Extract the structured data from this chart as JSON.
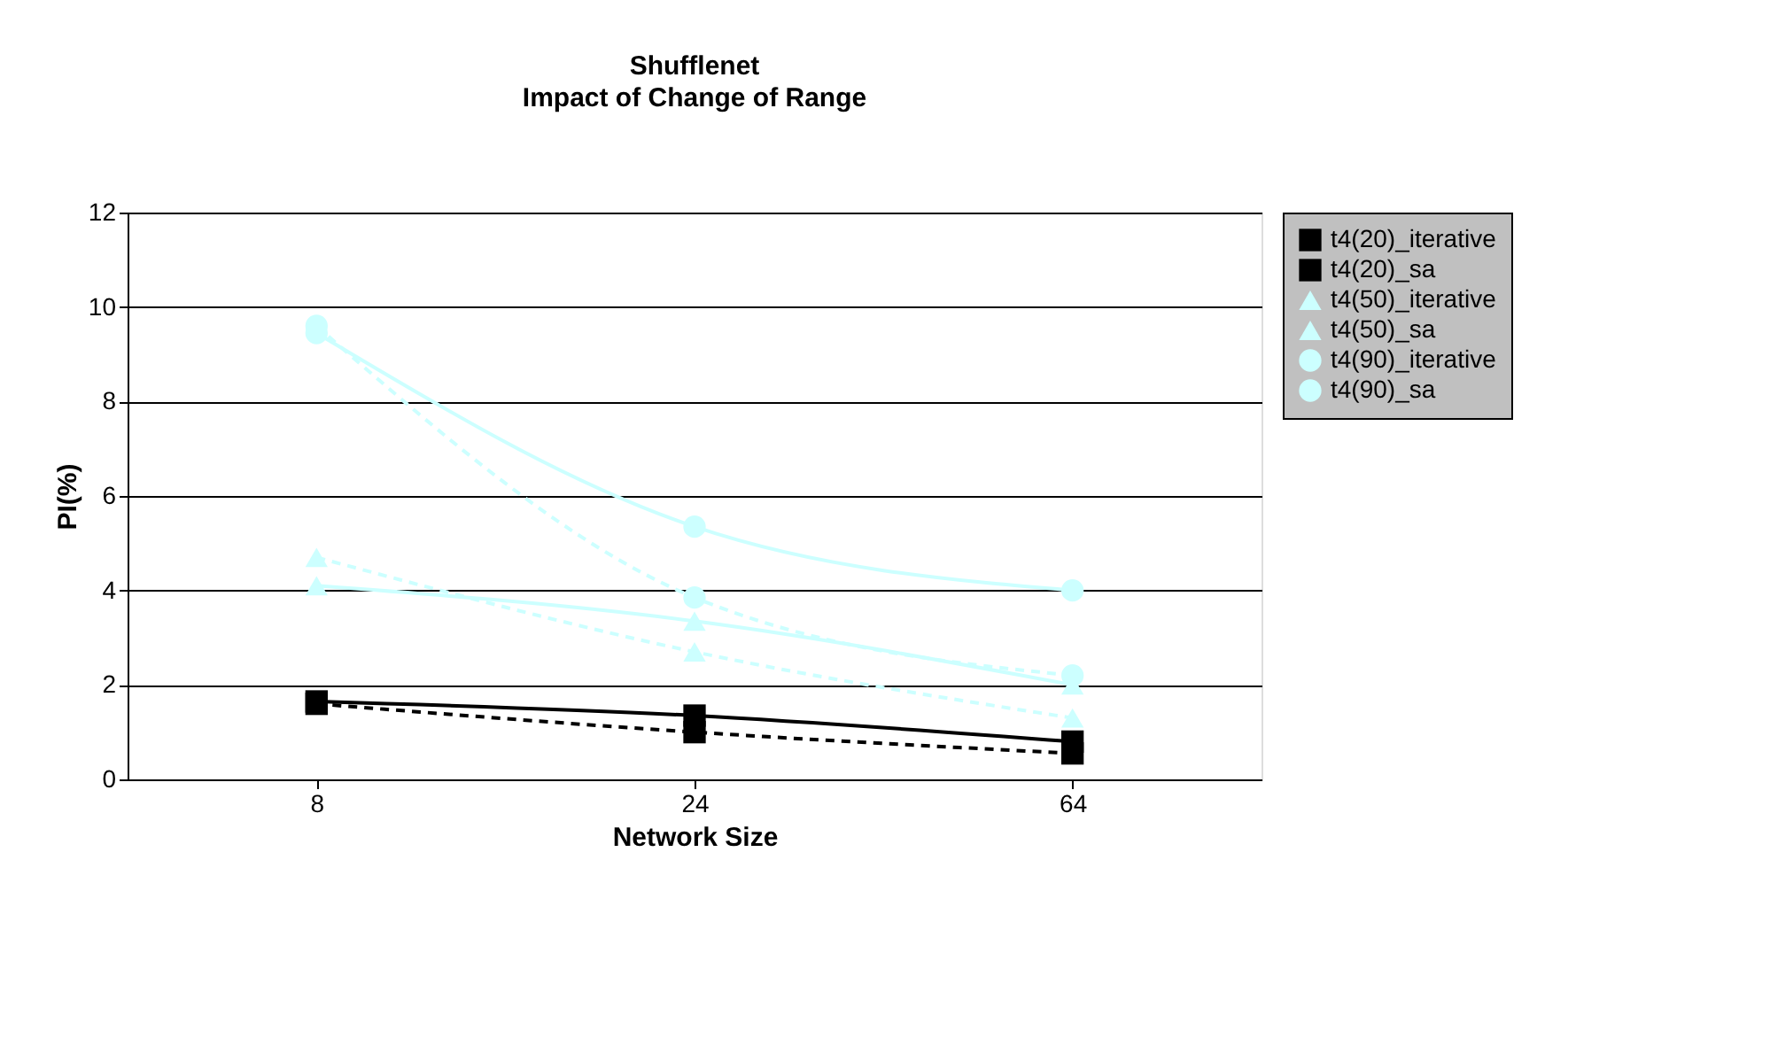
{
  "chart_data": {
    "type": "line",
    "title": "Shufflenet",
    "subtitle": "Impact of Change of Range",
    "xlabel": "Network Size",
    "ylabel": "PI(%)",
    "categories": [
      "8",
      "24",
      "64"
    ],
    "ylim": [
      0,
      12
    ],
    "yticks": [
      0,
      2,
      4,
      6,
      8,
      10,
      12
    ],
    "grid": "y",
    "legend": "right",
    "series": [
      {
        "name": "t4(20)_iterative",
        "color": "#000000",
        "line_style": "dashed",
        "marker": "square",
        "values": [
          1.6,
          1.0,
          0.55
        ]
      },
      {
        "name": "t4(20)_sa",
        "color": "#000000",
        "line_style": "solid",
        "marker": "square",
        "values": [
          1.65,
          1.35,
          0.8
        ]
      },
      {
        "name": "t4(50)_iterative",
        "color": "#ccffff",
        "line_style": "dashed",
        "marker": "triangle",
        "values": [
          4.7,
          2.7,
          1.3
        ]
      },
      {
        "name": "t4(50)_sa",
        "color": "#ccffff",
        "line_style": "solid",
        "marker": "triangle",
        "values": [
          4.1,
          3.35,
          2.0
        ]
      },
      {
        "name": "t4(90)_iterative",
        "color": "#ccffff",
        "line_style": "dashed",
        "marker": "circle",
        "values": [
          9.6,
          3.85,
          2.2
        ]
      },
      {
        "name": "t4(90)_sa",
        "color": "#ccffff",
        "line_style": "solid",
        "marker": "circle",
        "values": [
          9.45,
          5.35,
          4.0
        ]
      }
    ]
  }
}
